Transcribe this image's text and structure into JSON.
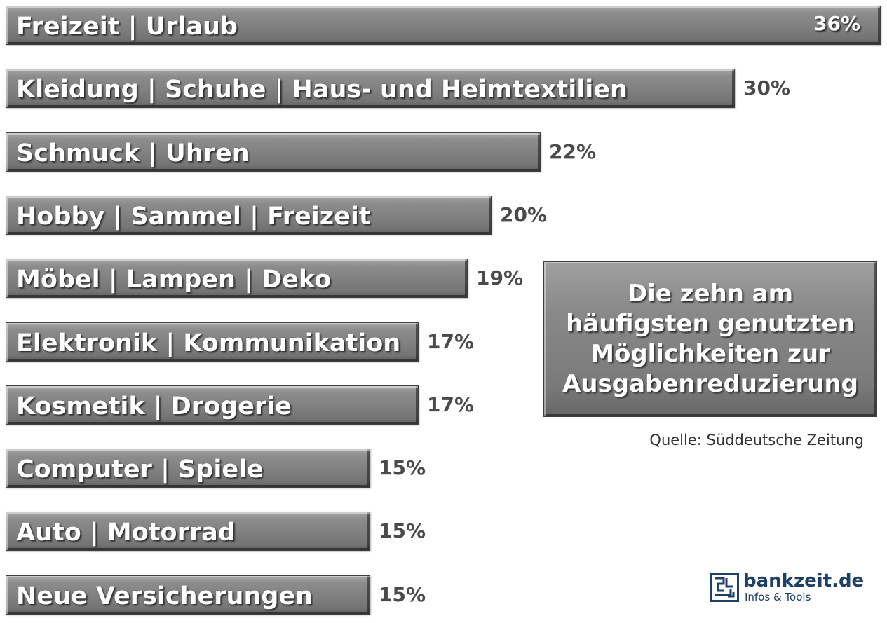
{
  "chart_data": {
    "type": "bar",
    "orientation": "horizontal",
    "title": "Die zehn am häufigsten genutzten Möglichkeiten zur Ausgabenreduzierung",
    "title_lines": [
      "Die zehn am",
      "häufigsten genutzten",
      "Möglichkeiten zur",
      "Ausgabenreduzierung"
    ],
    "categories": [
      "Freizeit | Urlaub",
      "Kleidung | Schuhe | Haus- und Heimtextilien",
      "Schmuck | Uhren",
      "Hobby | Sammel | Freizeit",
      "Möbel | Lampen | Deko",
      "Elektronik | Kommunikation",
      "Kosmetik | Drogerie",
      "Computer | Spiele",
      "Auto | Motorrad",
      "Neue Versicherungen"
    ],
    "values": [
      36,
      30,
      22,
      20,
      19,
      17,
      17,
      15,
      15,
      15
    ],
    "value_labels": [
      "36%",
      "30%",
      "22%",
      "20%",
      "19%",
      "17%",
      "17%",
      "15%",
      "15%",
      "15%"
    ],
    "unit": "%",
    "xlim": [
      0,
      36
    ],
    "grid": false,
    "legend": "none",
    "bar_color": "#808080",
    "value_label_color": "#4a4a4a",
    "source": "Quelle: Süddeutsche Zeitung"
  },
  "brand": {
    "name": "bankzeit.de",
    "tagline": "Infos & Tools",
    "color": "#1f3f66",
    "icon": "maze-logo-icon"
  }
}
